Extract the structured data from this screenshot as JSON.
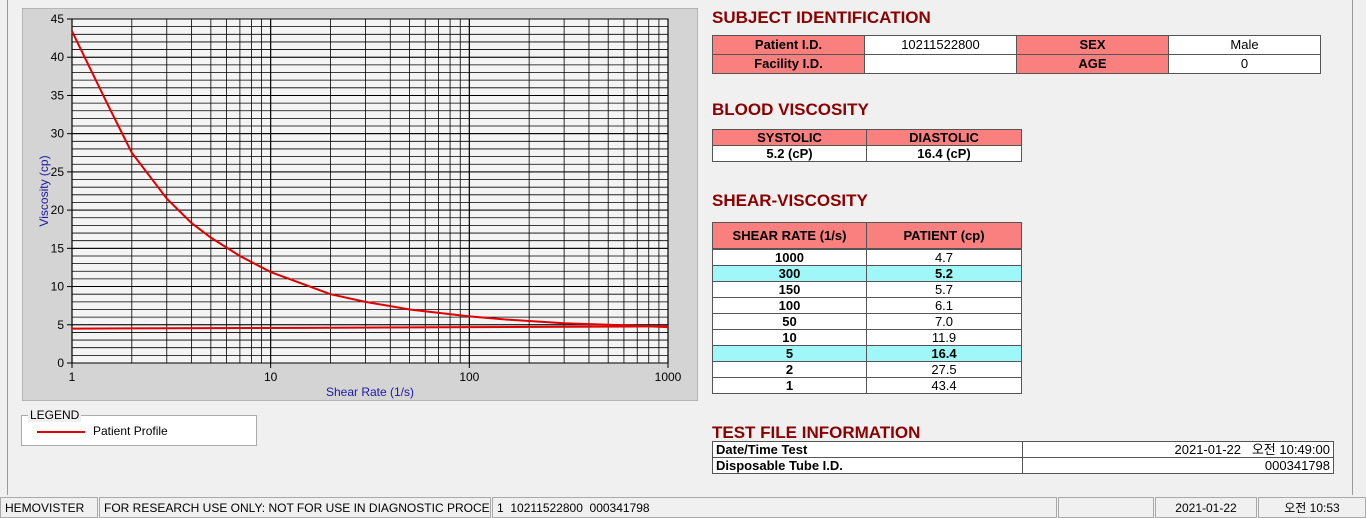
{
  "chart_data": {
    "type": "line",
    "xlabel": "Shear Rate (1/s)",
    "ylabel": "Viscosity (cp)",
    "xscale": "log",
    "xlim": [
      1,
      1000
    ],
    "xticks": [
      1,
      10,
      100,
      1000
    ],
    "ylim": [
      0,
      45
    ],
    "yticks": [
      0,
      5,
      10,
      15,
      20,
      25,
      30,
      35,
      40,
      45
    ],
    "grid": true,
    "minor_grid": true,
    "legend_title": "LEGEND",
    "series": [
      {
        "name": "Patient Profile",
        "color": "#e00000",
        "x": [
          1,
          1.5,
          2,
          3,
          4,
          5,
          7,
          10,
          20,
          30,
          50,
          100,
          150,
          200,
          300,
          500,
          1000
        ],
        "values": [
          43.4,
          34,
          27.5,
          21.5,
          18.3,
          16.4,
          14,
          11.9,
          9,
          8,
          7,
          6.1,
          5.7,
          5.5,
          5.2,
          5,
          4.7
        ]
      },
      {
        "color": "#e00000",
        "x": [
          1,
          15,
          1000
        ],
        "values": [
          4.5,
          4.6,
          4.8
        ]
      }
    ]
  },
  "subject": {
    "title": "SUBJECT IDENTIFICATION",
    "fields": [
      {
        "label": "Patient I.D.",
        "value": "10211522800"
      },
      {
        "label": "SEX",
        "value": "Male"
      },
      {
        "label": "Facility I.D."
      },
      {
        "label": "AGE",
        "value": 0
      }
    ]
  },
  "blood": {
    "title": "BLOOD VISCOSITY",
    "header": [
      "SYSTOLIC",
      "DIASTOLIC"
    ],
    "values": [
      "5.2 (cP)",
      "16.4 (cP)"
    ]
  },
  "shear": {
    "title": "SHEAR-VISCOSITY",
    "header": [
      "SHEAR RATE (1/s)",
      "PATIENT (cp)"
    ],
    "rows": [
      {
        "rate": "1000",
        "value": "4.7"
      },
      {
        "rate": "300",
        "value": "5.2",
        "highlight": true
      },
      {
        "rate": "150",
        "value": "5.7"
      },
      {
        "rate": "100",
        "value": "6.1"
      },
      {
        "rate": "50",
        "value": "7.0"
      },
      {
        "rate": "10",
        "value": "11.9"
      },
      {
        "rate": "5",
        "value": "16.4",
        "highlight": true
      },
      {
        "rate": "2",
        "value": "27.5"
      },
      {
        "rate": "1",
        "value": "43.4"
      }
    ]
  },
  "test_file": {
    "title": "TEST FILE INFORMATION",
    "rows": [
      {
        "label": "Date/Time Test",
        "value": "2021-01-22   오전 10:49:00"
      },
      {
        "label": "Disposable Tube I.D.",
        "value": "000341798"
      }
    ]
  },
  "status_bar": [
    "HEMOVISTER",
    "FOR RESEARCH USE ONLY: NOT FOR USE IN DIAGNOSTIC PROCEDURES",
    "1  10211522800  000341798",
    "2021-01-22",
    "오전 10:53"
  ]
}
